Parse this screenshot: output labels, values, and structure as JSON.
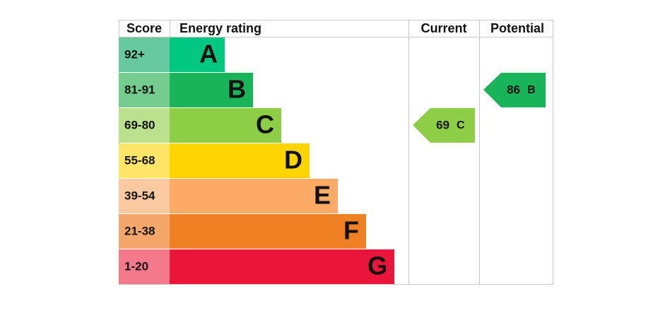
{
  "header": {
    "score": "Score",
    "energy_rating": "Energy rating",
    "current": "Current",
    "potential": "Potential"
  },
  "bands": [
    {
      "score": "92+",
      "letter": "A",
      "color": "#00c781",
      "score_color": "#66c9a0"
    },
    {
      "score": "81-91",
      "letter": "B",
      "color": "#19b459",
      "score_color": "#75cc8f"
    },
    {
      "score": "69-80",
      "letter": "C",
      "color": "#8dce46",
      "score_color": "#bbe08e"
    },
    {
      "score": "55-68",
      "letter": "D",
      "color": "#ffd500",
      "score_color": "#ffe566"
    },
    {
      "score": "39-54",
      "letter": "E",
      "color": "#fcaa65",
      "score_color": "#fdc9a0"
    },
    {
      "score": "21-38",
      "letter": "F",
      "color": "#ef8023",
      "score_color": "#f5a66a"
    },
    {
      "score": "1-20",
      "letter": "G",
      "color": "#e9153b",
      "score_color": "#f3798b"
    }
  ],
  "current": {
    "score": 69,
    "band": "C"
  },
  "potential": {
    "score": 86,
    "band": "B"
  }
}
